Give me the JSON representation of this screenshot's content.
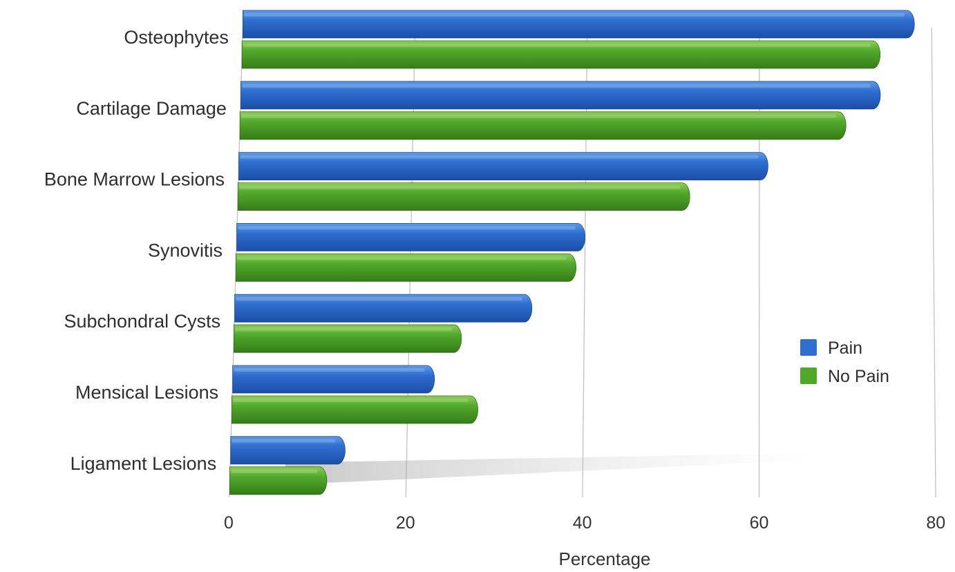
{
  "chart_data": {
    "type": "bar",
    "orientation": "horizontal",
    "categories": [
      "Osteophytes",
      "Cartilage Damage",
      "Bone Marrow Lesions",
      "Synovitis",
      "Subchondral Cysts",
      "Mensical Lesions",
      "Ligament Lesions"
    ],
    "series": [
      {
        "name": "Pain",
        "color": "#2f6fd0",
        "values": [
          78,
          74,
          61,
          40,
          34,
          23,
          13
        ]
      },
      {
        "name": "No Pain",
        "color": "#4fa82a",
        "values": [
          74,
          70,
          52,
          39,
          26,
          28,
          11
        ]
      }
    ],
    "xlabel": "Percentage",
    "ylabel": "",
    "xlim": [
      0,
      80
    ],
    "xticks": [
      0,
      20,
      40,
      60,
      80
    ],
    "grid": "vertical",
    "legend": "right"
  }
}
